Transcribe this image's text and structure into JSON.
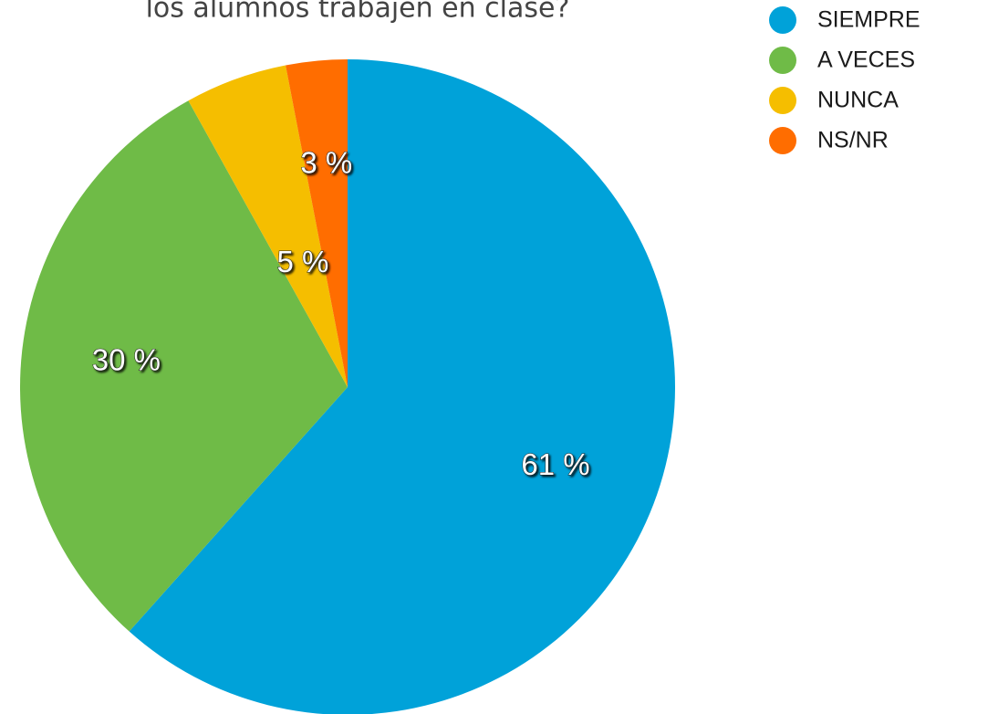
{
  "chart_data": {
    "type": "pie",
    "title": "los alumnos trabajen en clase?",
    "categories": [
      "SIEMPRE",
      "A VECES",
      "NUNCA",
      "NS/NR"
    ],
    "values": [
      61,
      30,
      5,
      3
    ],
    "value_labels": [
      "61 %",
      "30 %",
      "5 %",
      "3 %"
    ],
    "colors": [
      "#00a2d9",
      "#6fbb47",
      "#f5be00",
      "#ff6d00"
    ],
    "legend": "top-right"
  }
}
